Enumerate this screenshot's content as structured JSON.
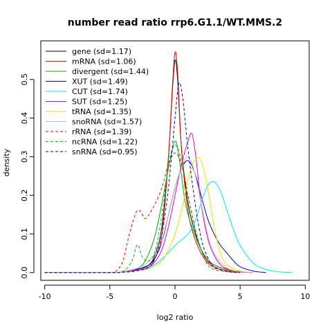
{
  "chart_data": {
    "type": "line",
    "title": "number read ratio rrp6.G1.1/WT.MMS.2",
    "xlabel": "log2 ratio",
    "ylabel": "density",
    "xlim": [
      -10.3,
      10.3
    ],
    "ylim": [
      -0.02,
      0.6
    ],
    "x_ticks": [
      -10,
      -5,
      0,
      5,
      10
    ],
    "y_ticks": [
      0.0,
      0.1,
      0.2,
      0.3,
      0.4,
      0.5
    ],
    "y_tick_labels": [
      "0.0",
      "0.1",
      "0.2",
      "0.3",
      "0.4",
      "0.5"
    ],
    "legend_position": "top-left",
    "grid": false,
    "series": [
      {
        "name": "gene (sd=1.17)",
        "color": "#000000",
        "dash": "solid",
        "points": [
          [
            -10,
            0
          ],
          [
            -5,
            0
          ],
          [
            -4,
            0.002
          ],
          [
            -3,
            0.008
          ],
          [
            -2,
            0.02
          ],
          [
            -1.5,
            0.05
          ],
          [
            -1,
            0.12
          ],
          [
            -0.5,
            0.3
          ],
          [
            -0.2,
            0.47
          ],
          [
            0,
            0.55
          ],
          [
            0.2,
            0.5
          ],
          [
            0.5,
            0.32
          ],
          [
            1,
            0.18
          ],
          [
            1.5,
            0.11
          ],
          [
            2,
            0.06
          ],
          [
            2.5,
            0.03
          ],
          [
            3,
            0.02
          ],
          [
            4,
            0.008
          ],
          [
            5,
            0.002
          ],
          [
            6,
            0
          ]
        ]
      },
      {
        "name": "mRNA (sd=1.06)",
        "color": "#ff0000",
        "dash": "solid",
        "points": [
          [
            -10,
            0
          ],
          [
            -5,
            0
          ],
          [
            -4,
            0.002
          ],
          [
            -3,
            0.006
          ],
          [
            -2,
            0.015
          ],
          [
            -1.5,
            0.04
          ],
          [
            -1,
            0.1
          ],
          [
            -0.5,
            0.3
          ],
          [
            -0.2,
            0.48
          ],
          [
            0,
            0.57
          ],
          [
            0.2,
            0.52
          ],
          [
            0.5,
            0.32
          ],
          [
            1,
            0.16
          ],
          [
            1.5,
            0.09
          ],
          [
            2,
            0.05
          ],
          [
            2.5,
            0.025
          ],
          [
            3,
            0.015
          ],
          [
            4,
            0.005
          ],
          [
            5,
            0.002
          ],
          [
            6,
            0
          ]
        ]
      },
      {
        "name": "divergent (sd=1.44)",
        "color": "#00b000",
        "dash": "solid",
        "points": [
          [
            -10,
            0
          ],
          [
            -5,
            0
          ],
          [
            -4,
            0.003
          ],
          [
            -3,
            0.01
          ],
          [
            -2.5,
            0.02
          ],
          [
            -2,
            0.05
          ],
          [
            -1.5,
            0.1
          ],
          [
            -1,
            0.18
          ],
          [
            -0.5,
            0.27
          ],
          [
            0,
            0.34
          ],
          [
            0.3,
            0.3
          ],
          [
            0.7,
            0.2
          ],
          [
            1,
            0.15
          ],
          [
            1.5,
            0.1
          ],
          [
            2,
            0.06
          ],
          [
            2.5,
            0.035
          ],
          [
            3,
            0.02
          ],
          [
            4,
            0.008
          ],
          [
            5,
            0.002
          ],
          [
            6,
            0
          ]
        ]
      },
      {
        "name": "XUT (sd=1.49)",
        "color": "#0000cc",
        "dash": "solid",
        "points": [
          [
            -10,
            0
          ],
          [
            -5,
            0
          ],
          [
            -4,
            0.002
          ],
          [
            -3,
            0.008
          ],
          [
            -2,
            0.02
          ],
          [
            -1.5,
            0.04
          ],
          [
            -1,
            0.08
          ],
          [
            -0.5,
            0.15
          ],
          [
            0,
            0.22
          ],
          [
            0.5,
            0.27
          ],
          [
            1,
            0.29
          ],
          [
            1.5,
            0.26
          ],
          [
            2,
            0.2
          ],
          [
            2.5,
            0.14
          ],
          [
            3,
            0.1
          ],
          [
            3.5,
            0.07
          ],
          [
            4,
            0.05
          ],
          [
            4.5,
            0.03
          ],
          [
            5,
            0.015
          ],
          [
            6,
            0.004
          ],
          [
            7,
            0
          ]
        ]
      },
      {
        "name": "CUT (sd=1.74)",
        "color": "#00e5ee",
        "dash": "solid",
        "points": [
          [
            -10,
            0
          ],
          [
            -5,
            0
          ],
          [
            -4,
            0.001
          ],
          [
            -3,
            0.004
          ],
          [
            -2,
            0.012
          ],
          [
            -1,
            0.035
          ],
          [
            0,
            0.07
          ],
          [
            0.5,
            0.085
          ],
          [
            1,
            0.1
          ],
          [
            1.5,
            0.13
          ],
          [
            2,
            0.18
          ],
          [
            2.5,
            0.225
          ],
          [
            3,
            0.235
          ],
          [
            3.5,
            0.21
          ],
          [
            4,
            0.16
          ],
          [
            4.5,
            0.11
          ],
          [
            5,
            0.07
          ],
          [
            6,
            0.025
          ],
          [
            7,
            0.008
          ],
          [
            8,
            0.002
          ],
          [
            9,
            0
          ]
        ]
      },
      {
        "name": "SUT (sd=1.25)",
        "color": "#e000e0",
        "dash": "solid",
        "points": [
          [
            -10,
            0
          ],
          [
            -5,
            0
          ],
          [
            -4,
            0.002
          ],
          [
            -3,
            0.006
          ],
          [
            -2,
            0.015
          ],
          [
            -1.5,
            0.03
          ],
          [
            -1,
            0.06
          ],
          [
            -0.5,
            0.12
          ],
          [
            0,
            0.2
          ],
          [
            0.5,
            0.28
          ],
          [
            1,
            0.34
          ],
          [
            1.3,
            0.36
          ],
          [
            1.6,
            0.3
          ],
          [
            2,
            0.18
          ],
          [
            2.5,
            0.09
          ],
          [
            3,
            0.045
          ],
          [
            3.5,
            0.02
          ],
          [
            4,
            0.01
          ],
          [
            5,
            0.002
          ],
          [
            6,
            0
          ]
        ]
      },
      {
        "name": "tRNA (sd=1.35)",
        "color": "#ffd700",
        "dash": "solid",
        "points": [
          [
            -10,
            0
          ],
          [
            -5,
            0
          ],
          [
            -4,
            0.001
          ],
          [
            -3,
            0.004
          ],
          [
            -2,
            0.01
          ],
          [
            -1,
            0.03
          ],
          [
            -0.5,
            0.06
          ],
          [
            0,
            0.1
          ],
          [
            0.5,
            0.16
          ],
          [
            1,
            0.24
          ],
          [
            1.5,
            0.29
          ],
          [
            2,
            0.29
          ],
          [
            2.5,
            0.22
          ],
          [
            3,
            0.12
          ],
          [
            3.5,
            0.05
          ],
          [
            4,
            0.02
          ],
          [
            5,
            0.004
          ],
          [
            6,
            0
          ]
        ]
      },
      {
        "name": "snoRNA (sd=1.57)",
        "color": "#bbbbbb",
        "dash": "solid",
        "points": [
          [
            -10,
            0
          ],
          [
            -5,
            0
          ],
          [
            -4,
            0.003
          ],
          [
            -3,
            0.01
          ],
          [
            -2,
            0.03
          ],
          [
            -1,
            0.08
          ],
          [
            -0.5,
            0.15
          ],
          [
            0,
            0.22
          ],
          [
            0.5,
            0.27
          ],
          [
            1,
            0.3
          ],
          [
            1.5,
            0.26
          ],
          [
            2,
            0.18
          ],
          [
            2.5,
            0.1
          ],
          [
            3,
            0.05
          ],
          [
            4,
            0.012
          ],
          [
            5,
            0.003
          ],
          [
            6,
            0
          ]
        ]
      },
      {
        "name": "rRNA (sd=1.39)",
        "color": "#ff0000",
        "dash": "dashed",
        "points": [
          [
            -10,
            0
          ],
          [
            -5,
            0
          ],
          [
            -4.5,
            0.005
          ],
          [
            -4,
            0.03
          ],
          [
            -3.5,
            0.1
          ],
          [
            -3,
            0.155
          ],
          [
            -2.7,
            0.16
          ],
          [
            -2.3,
            0.14
          ],
          [
            -2,
            0.15
          ],
          [
            -1.5,
            0.18
          ],
          [
            -1,
            0.22
          ],
          [
            -0.5,
            0.28
          ],
          [
            0,
            0.31
          ],
          [
            0.5,
            0.28
          ],
          [
            1,
            0.2
          ],
          [
            1.5,
            0.12
          ],
          [
            2,
            0.06
          ],
          [
            2.5,
            0.03
          ],
          [
            3,
            0.012
          ],
          [
            4,
            0.003
          ],
          [
            5,
            0
          ]
        ]
      },
      {
        "name": "ncRNA (sd=1.22)",
        "color": "#00b000",
        "dash": "dashed",
        "points": [
          [
            -10,
            0
          ],
          [
            -5,
            0
          ],
          [
            -4,
            0.003
          ],
          [
            -3.3,
            0.03
          ],
          [
            -3,
            0.065
          ],
          [
            -2.8,
            0.07
          ],
          [
            -2.5,
            0.04
          ],
          [
            -2,
            0.03
          ],
          [
            -1.5,
            0.06
          ],
          [
            -1,
            0.15
          ],
          [
            -0.5,
            0.28
          ],
          [
            0,
            0.33
          ],
          [
            0.5,
            0.29
          ],
          [
            1,
            0.2
          ],
          [
            1.5,
            0.12
          ],
          [
            2,
            0.06
          ],
          [
            2.5,
            0.02
          ],
          [
            3,
            0.008
          ],
          [
            4,
            0.002
          ],
          [
            5,
            0
          ]
        ]
      },
      {
        "name": "snRNA (sd=0.95)",
        "color": "#0000cc",
        "dash": "dashed",
        "points": [
          [
            -10,
            0
          ],
          [
            -5,
            0
          ],
          [
            -4,
            0.001
          ],
          [
            -3,
            0.004
          ],
          [
            -2,
            0.015
          ],
          [
            -1.5,
            0.04
          ],
          [
            -1,
            0.1
          ],
          [
            -0.5,
            0.22
          ],
          [
            0,
            0.4
          ],
          [
            0.3,
            0.49
          ],
          [
            0.6,
            0.45
          ],
          [
            1,
            0.32
          ],
          [
            1.5,
            0.19
          ],
          [
            2,
            0.09
          ],
          [
            2.5,
            0.04
          ],
          [
            3,
            0.015
          ],
          [
            4,
            0.003
          ],
          [
            5,
            0
          ]
        ]
      }
    ]
  }
}
